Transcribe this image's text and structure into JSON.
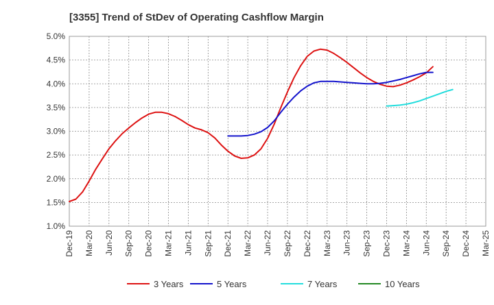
{
  "chart_data": {
    "type": "line",
    "title": "[3355]  Trend of StDev of Operating Cashflow Margin",
    "xlabel": "",
    "ylabel": "",
    "x_tick_labels": [
      "Dec-19",
      "Mar-20",
      "Jun-20",
      "Sep-20",
      "Dec-20",
      "Mar-21",
      "Jun-21",
      "Sep-21",
      "Dec-21",
      "Mar-22",
      "Jun-22",
      "Sep-22",
      "Dec-22",
      "Mar-23",
      "Jun-23",
      "Sep-23",
      "Dec-23",
      "Mar-24",
      "Jun-24",
      "Sep-24",
      "Dec-24",
      "Mar-25"
    ],
    "y_tick_labels": [
      "5.0%",
      "4.5%",
      "4.0%",
      "3.5%",
      "3.0%",
      "2.5%",
      "2.0%",
      "1.5%",
      "1.0%"
    ],
    "ylim": [
      1.0,
      5.0
    ],
    "y_unit": "%",
    "grid": true,
    "legend_position": "bottom",
    "series": [
      {
        "name": "3 Years",
        "color": "#dd1111",
        "points": [
          [
            "Dec-19",
            1.52
          ],
          [
            "Jan-20",
            1.57
          ],
          [
            "Feb-20",
            1.72
          ],
          [
            "Mar-20",
            1.95
          ],
          [
            "Apr-20",
            2.2
          ],
          [
            "May-20",
            2.42
          ],
          [
            "Jun-20",
            2.63
          ],
          [
            "Jul-20",
            2.8
          ],
          [
            "Aug-20",
            2.95
          ],
          [
            "Sep-20",
            3.07
          ],
          [
            "Oct-20",
            3.18
          ],
          [
            "Nov-20",
            3.28
          ],
          [
            "Dec-20",
            3.36
          ],
          [
            "Jan-21",
            3.4
          ],
          [
            "Feb-21",
            3.4
          ],
          [
            "Mar-21",
            3.37
          ],
          [
            "Apr-21",
            3.31
          ],
          [
            "May-21",
            3.23
          ],
          [
            "Jun-21",
            3.14
          ],
          [
            "Jul-21",
            3.07
          ],
          [
            "Aug-21",
            3.03
          ],
          [
            "Sep-21",
            2.97
          ],
          [
            "Oct-21",
            2.86
          ],
          [
            "Nov-21",
            2.71
          ],
          [
            "Dec-21",
            2.58
          ],
          [
            "Jan-22",
            2.48
          ],
          [
            "Feb-22",
            2.43
          ],
          [
            "Mar-22",
            2.44
          ],
          [
            "Apr-22",
            2.5
          ],
          [
            "May-22",
            2.63
          ],
          [
            "Jun-22",
            2.85
          ],
          [
            "Jul-22",
            3.15
          ],
          [
            "Aug-22",
            3.5
          ],
          [
            "Sep-22",
            3.83
          ],
          [
            "Oct-22",
            4.13
          ],
          [
            "Nov-22",
            4.38
          ],
          [
            "Dec-22",
            4.58
          ],
          [
            "Jan-23",
            4.69
          ],
          [
            "Feb-23",
            4.73
          ],
          [
            "Mar-23",
            4.71
          ],
          [
            "Apr-23",
            4.64
          ],
          [
            "May-23",
            4.55
          ],
          [
            "Jun-23",
            4.45
          ],
          [
            "Jul-23",
            4.34
          ],
          [
            "Aug-23",
            4.23
          ],
          [
            "Sep-23",
            4.13
          ],
          [
            "Oct-23",
            4.05
          ],
          [
            "Nov-23",
            3.99
          ],
          [
            "Dec-23",
            3.95
          ],
          [
            "Jan-24",
            3.94
          ],
          [
            "Feb-24",
            3.97
          ],
          [
            "Mar-24",
            4.02
          ],
          [
            "Apr-24",
            4.08
          ],
          [
            "May-24",
            4.15
          ],
          [
            "Jun-24",
            4.23
          ],
          [
            "Jul-24",
            4.36
          ]
        ]
      },
      {
        "name": "5 Years",
        "color": "#1111cc",
        "points": [
          [
            "Dec-21",
            2.9
          ],
          [
            "Jan-22",
            2.9
          ],
          [
            "Feb-22",
            2.9
          ],
          [
            "Mar-22",
            2.91
          ],
          [
            "Apr-22",
            2.94
          ],
          [
            "May-22",
            2.99
          ],
          [
            "Jun-22",
            3.08
          ],
          [
            "Jul-22",
            3.22
          ],
          [
            "Aug-22",
            3.4
          ],
          [
            "Sep-22",
            3.57
          ],
          [
            "Oct-22",
            3.72
          ],
          [
            "Nov-22",
            3.85
          ],
          [
            "Dec-22",
            3.95
          ],
          [
            "Jan-23",
            4.02
          ],
          [
            "Feb-23",
            4.05
          ],
          [
            "Mar-23",
            4.05
          ],
          [
            "Apr-23",
            4.05
          ],
          [
            "May-23",
            4.04
          ],
          [
            "Jun-23",
            4.03
          ],
          [
            "Jul-23",
            4.02
          ],
          [
            "Aug-23",
            4.01
          ],
          [
            "Sep-23",
            4.0
          ],
          [
            "Oct-23",
            4.0
          ],
          [
            "Nov-23",
            4.01
          ],
          [
            "Dec-23",
            4.03
          ],
          [
            "Jan-24",
            4.06
          ],
          [
            "Feb-24",
            4.09
          ],
          [
            "Mar-24",
            4.13
          ],
          [
            "Apr-24",
            4.17
          ],
          [
            "May-24",
            4.21
          ],
          [
            "Jun-24",
            4.24
          ],
          [
            "Jul-24",
            4.24
          ]
        ]
      },
      {
        "name": "7 Years",
        "color": "#22dddd",
        "points": [
          [
            "Dec-23",
            3.53
          ],
          [
            "Jan-24",
            3.54
          ],
          [
            "Feb-24",
            3.55
          ],
          [
            "Mar-24",
            3.57
          ],
          [
            "Apr-24",
            3.6
          ],
          [
            "May-24",
            3.64
          ],
          [
            "Jun-24",
            3.69
          ],
          [
            "Jul-24",
            3.74
          ],
          [
            "Aug-24",
            3.79
          ],
          [
            "Sep-24",
            3.84
          ],
          [
            "Oct-24",
            3.88
          ]
        ]
      },
      {
        "name": "10 Years",
        "color": "#228822",
        "points": []
      }
    ]
  }
}
